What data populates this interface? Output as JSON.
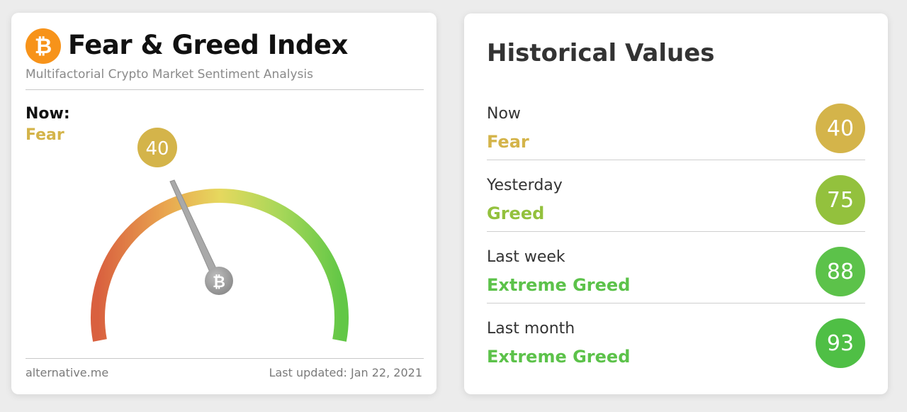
{
  "index_card": {
    "title": "Fear & Greed Index",
    "subtitle": "Multifactorial Crypto Market Sentiment Analysis",
    "now_label": "Now:",
    "now_status": "Fear",
    "value": "40",
    "footer_source": "alternative.me",
    "footer_updated": "Last updated: Jan 22, 2021"
  },
  "historical": {
    "title": "Historical Values",
    "rows": [
      {
        "label": "Now",
        "status": "Fear",
        "value": "40",
        "color": "#d4b44a"
      },
      {
        "label": "Yesterday",
        "status": "Greed",
        "value": "75",
        "color": "#93c13d"
      },
      {
        "label": "Last week",
        "status": "Extreme Greed",
        "value": "88",
        "color": "#5cc24a"
      },
      {
        "label": "Last month",
        "status": "Extreme Greed",
        "value": "93",
        "color": "#4fbf45"
      }
    ]
  },
  "colors": {
    "fear": "#d4b44a",
    "greed": "#93c13d",
    "extreme_greed": "#5cc24a",
    "bitcoin": "#f7931a"
  }
}
